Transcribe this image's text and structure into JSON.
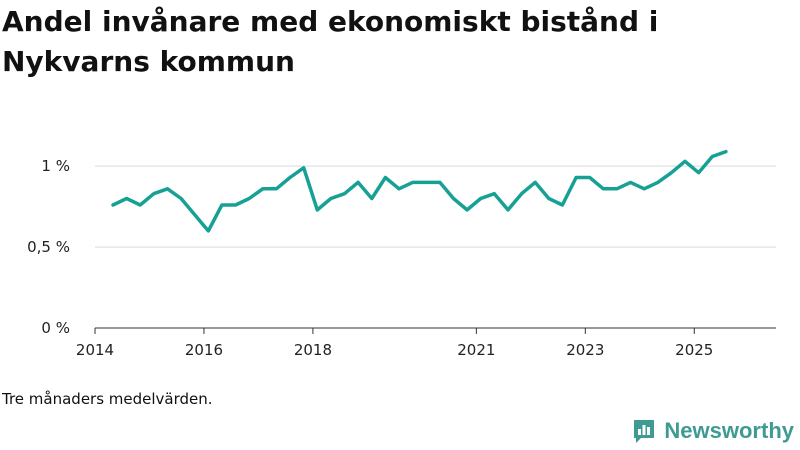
{
  "title": "Andel invånare med ekonomiskt bistånd i Nykvarns kommun",
  "note": "Tre månaders medelvärden.",
  "brand": {
    "name": "Newsworthy",
    "icon": "newsworthy-logo-icon",
    "color": "#3f9a92"
  },
  "chart_data": {
    "type": "line",
    "title": "Andel invånare med ekonomiskt bistånd i Nykvarns kommun",
    "xlabel": "",
    "ylabel": "",
    "ylim": [
      0,
      1.1
    ],
    "yticks": [
      {
        "value": 0,
        "label": "0 %"
      },
      {
        "value": 0.5,
        "label": "0,5 %"
      },
      {
        "value": 1,
        "label": "1 %"
      }
    ],
    "xlim": [
      2014,
      2026.5
    ],
    "xticks": [
      {
        "value": 2014,
        "label": "2014"
      },
      {
        "value": 2016,
        "label": "2016"
      },
      {
        "value": 2018,
        "label": "2018"
      },
      {
        "value": 2021,
        "label": "2021"
      },
      {
        "value": 2023,
        "label": "2023"
      },
      {
        "value": 2025,
        "label": "2025"
      }
    ],
    "grid": true,
    "color": "#17a195",
    "series": [
      {
        "name": "Andel invånare med ekonomiskt bistånd",
        "x": [
          2014.33,
          2014.58,
          2014.83,
          2015.08,
          2015.33,
          2015.58,
          2015.83,
          2016.08,
          2016.33,
          2016.58,
          2016.83,
          2017.08,
          2017.33,
          2017.58,
          2017.83,
          2018.08,
          2018.33,
          2018.58,
          2018.83,
          2019.08,
          2019.33,
          2019.58,
          2019.83,
          2020.08,
          2020.33,
          2020.58,
          2020.83,
          2021.08,
          2021.33,
          2021.58,
          2021.83,
          2022.08,
          2022.33,
          2022.58,
          2022.83,
          2023.08,
          2023.33,
          2023.58,
          2023.83,
          2024.08,
          2024.33,
          2024.58,
          2024.83,
          2025.08,
          2025.33,
          2025.58
        ],
        "values": [
          0.76,
          0.8,
          0.76,
          0.83,
          0.86,
          0.8,
          0.7,
          0.6,
          0.76,
          0.76,
          0.8,
          0.86,
          0.86,
          0.93,
          0.99,
          0.73,
          0.8,
          0.83,
          0.9,
          0.8,
          0.93,
          0.86,
          0.9,
          0.9,
          0.9,
          0.8,
          0.73,
          0.8,
          0.83,
          0.73,
          0.83,
          0.9,
          0.8,
          0.76,
          0.93,
          0.93,
          0.86,
          0.86,
          0.9,
          0.86,
          0.9,
          0.96,
          1.03,
          0.96,
          1.06,
          1.09
        ]
      }
    ]
  }
}
